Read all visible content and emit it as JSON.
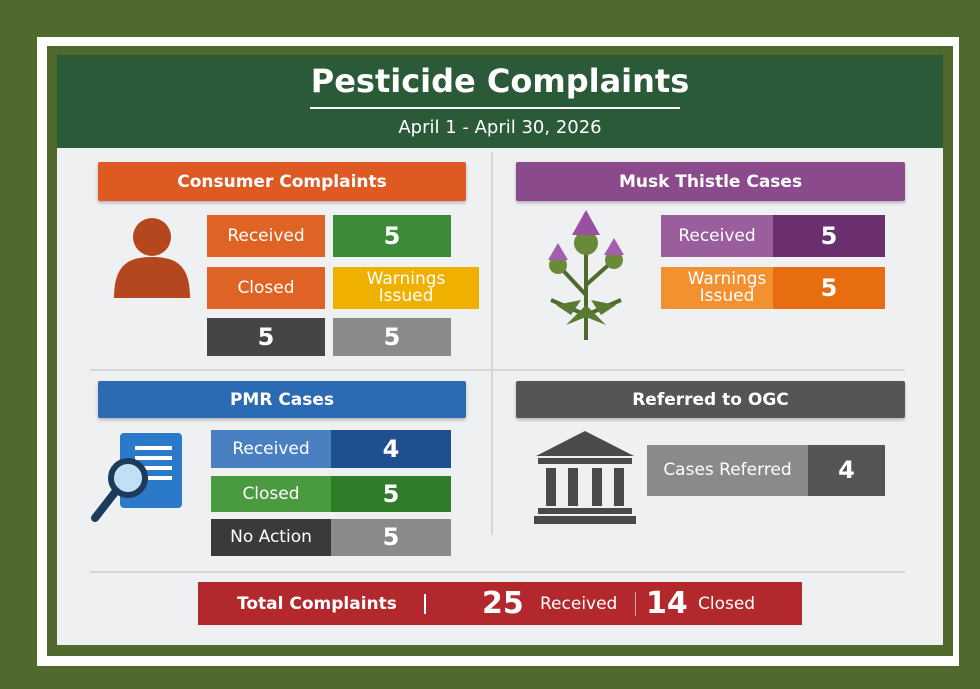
{
  "header": {
    "title": "Pesticide Complaints",
    "subtitle": "April 1 - April 30, 2026"
  },
  "sections": [
    {
      "title": "Consumer Complaints",
      "rows": [
        [
          "Received",
          5
        ],
        [
          "Closed",
          "Warnings Issued"
        ],
        [
          5,
          5
        ]
      ]
    },
    {
      "title": "Musk Thistle Cases",
      "rows": [
        [
          "Received",
          5
        ],
        [
          "Warnings Issued",
          5
        ]
      ]
    },
    {
      "title": "PMR Cases",
      "rows": [
        [
          "Received",
          4
        ],
        [
          "Closed",
          5
        ],
        [
          "No Action",
          5
        ]
      ]
    },
    {
      "title": "Referred to  OGC",
      "rows": [
        [
          "Cases Referred",
          4
        ]
      ]
    }
  ],
  "footer": {
    "label": "Total Complaints",
    "received": 25,
    "received_label": "Received",
    "closed": 14,
    "closed_label": "Closed"
  }
}
